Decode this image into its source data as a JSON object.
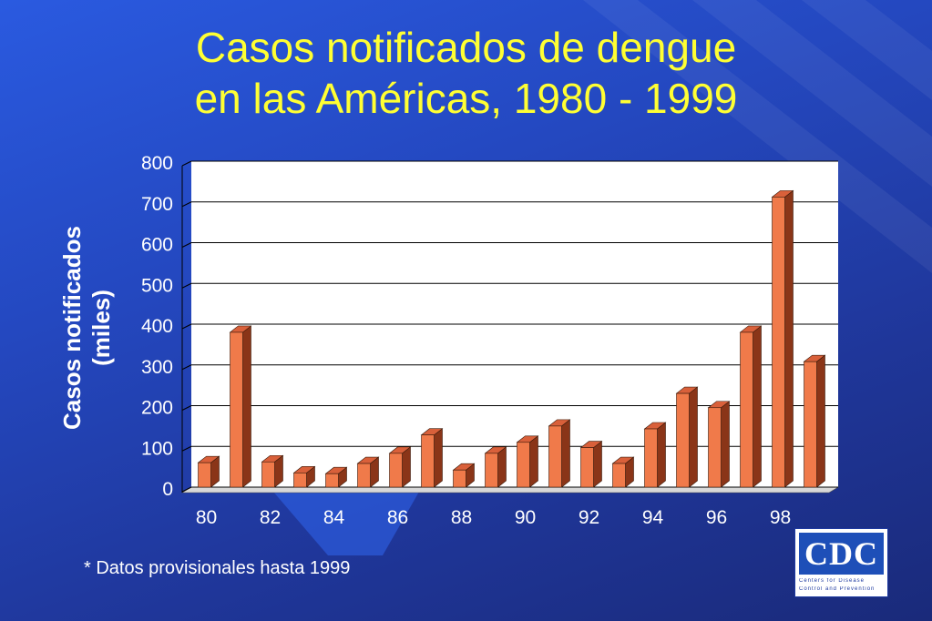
{
  "slide": {
    "title_line1": "Casos notificados de dengue",
    "title_line2": "en las Américas, 1980 - 1999",
    "ylabel_line1": "Casos notificados",
    "ylabel_line2": "(miles)",
    "footnote": "* Datos provisionales hasta 1999",
    "colors": {
      "title": "#ffff33",
      "background": "#2448c0",
      "bar_front": "#f07a4a",
      "bar_side": "#8a3518",
      "bar_top": "#d9603a",
      "plot_bg": "#ffffff"
    }
  },
  "logo": {
    "text": "CDC",
    "line1": "Centers for Disease",
    "line2": "Control and Prevention"
  },
  "chart_data": {
    "type": "bar",
    "x": [
      80,
      81,
      82,
      83,
      84,
      85,
      86,
      87,
      88,
      89,
      90,
      91,
      92,
      93,
      94,
      95,
      96,
      97,
      98,
      99
    ],
    "values": [
      60,
      380,
      62,
      35,
      33,
      58,
      83,
      128,
      42,
      83,
      110,
      150,
      97,
      58,
      143,
      230,
      195,
      380,
      712,
      308
    ],
    "xtick_labels": [
      "80",
      "82",
      "84",
      "86",
      "88",
      "90",
      "92",
      "94",
      "96",
      "98"
    ],
    "ytick_labels": [
      "0",
      "100",
      "200",
      "300",
      "400",
      "500",
      "600",
      "700",
      "800"
    ],
    "ylim": [
      0,
      800
    ],
    "grid": true,
    "title": "Casos notificados de dengue en las Américas, 1980 - 1999",
    "ylabel": "Casos notificados (miles)",
    "xlabel": ""
  }
}
